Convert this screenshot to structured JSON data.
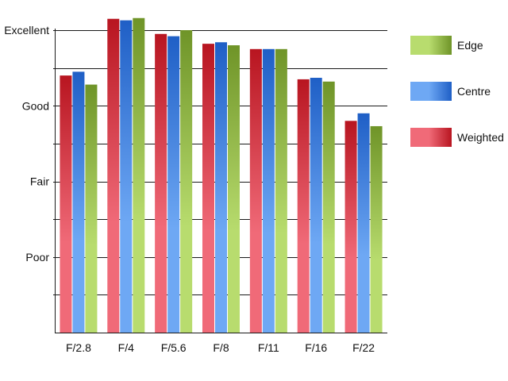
{
  "chart_data": {
    "type": "bar",
    "title": "",
    "xlabel": "",
    "ylabel": "",
    "categories": [
      "F/2.8",
      "F/4",
      "F/5.6",
      "F/8",
      "F/11",
      "F/16",
      "F/22"
    ],
    "y_tick_labels": [
      {
        "value": 1,
        "label": "Poor"
      },
      {
        "value": 2,
        "label": "Fair"
      },
      {
        "value": 3,
        "label": "Good"
      },
      {
        "value": 4,
        "label": "Excellent"
      }
    ],
    "ylim": [
      0,
      4
    ],
    "minor_tick_step": 0.5,
    "grid": true,
    "legend_position": "right",
    "series": [
      {
        "name": "Weighted",
        "values": [
          3.4,
          4.15,
          3.95,
          3.82,
          3.75,
          3.35,
          2.8
        ],
        "colors": {
          "light": "#f06a78",
          "dark": "#b81520"
        }
      },
      {
        "name": "Centre",
        "values": [
          3.45,
          4.13,
          3.92,
          3.84,
          3.75,
          3.37,
          2.9
        ],
        "colors": {
          "light": "#6ea8f4",
          "dark": "#1f5fc6"
        }
      },
      {
        "name": "Edge",
        "values": [
          3.28,
          4.16,
          4.0,
          3.8,
          3.75,
          3.32,
          2.73
        ],
        "colors": {
          "light": "#b8dc6e",
          "dark": "#6f9428"
        }
      }
    ],
    "legend_order": [
      "Edge",
      "Centre",
      "Weighted"
    ]
  }
}
